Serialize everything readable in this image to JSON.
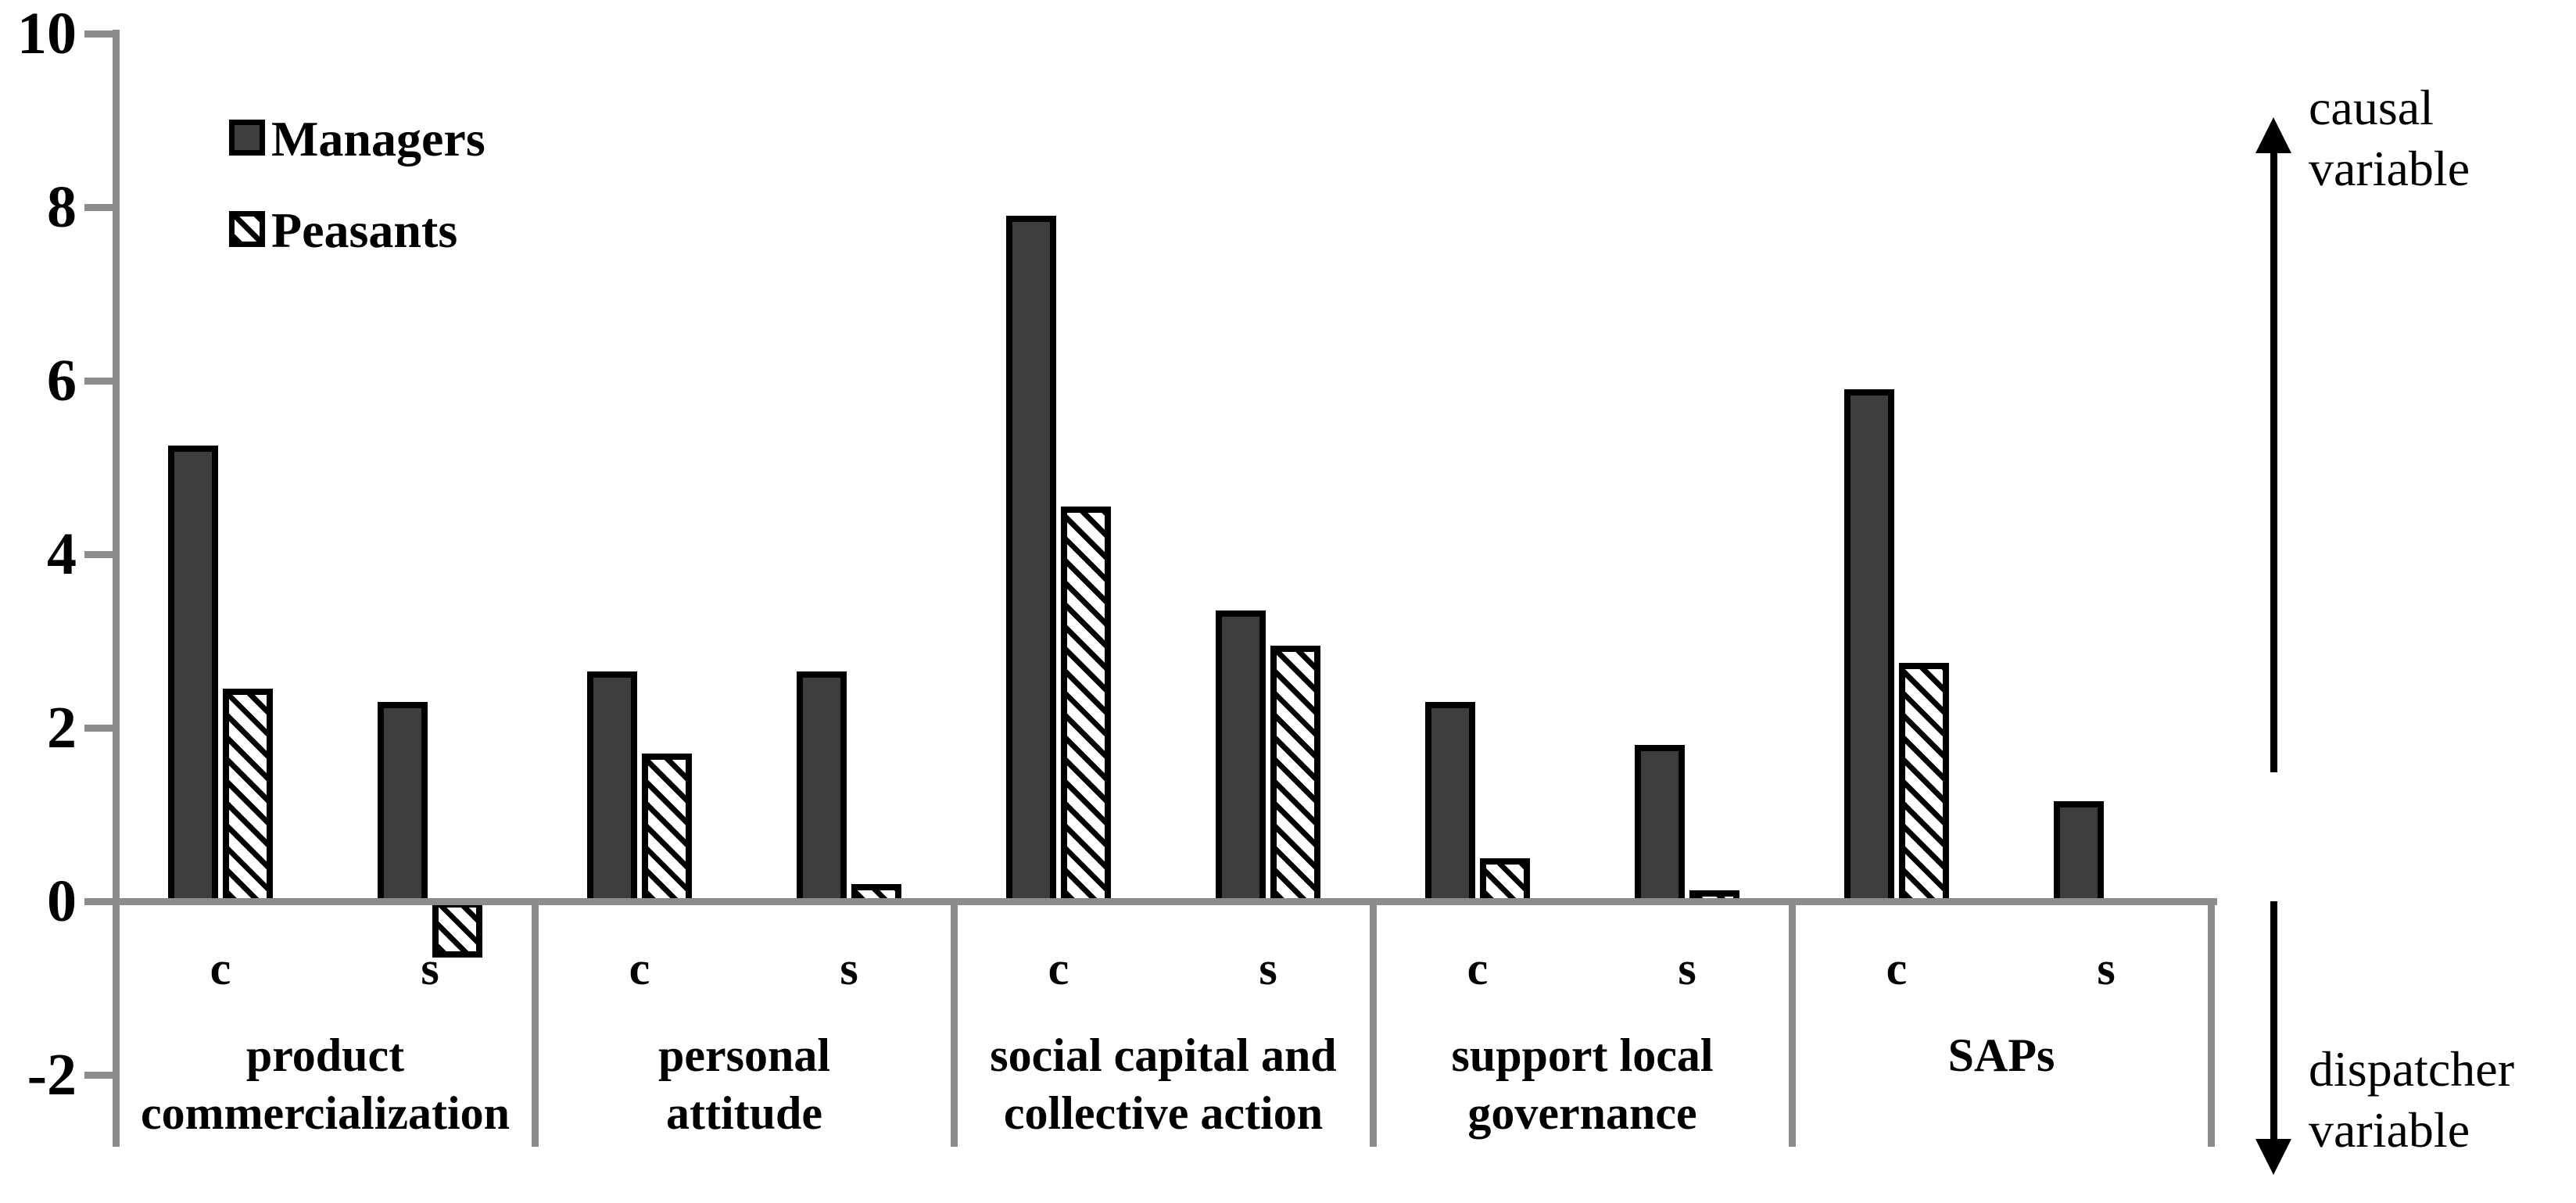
{
  "chart_data": {
    "type": "bar",
    "title": "",
    "xlabel": "",
    "ylabel": "",
    "ylim": [
      -2.8,
      10
    ],
    "yticks": [
      10,
      8,
      6,
      4,
      2,
      0,
      -2
    ],
    "grid": false,
    "legend_position": "top-left-inside",
    "categories": [
      "product\ncommercialization",
      "personal\nattitude",
      "social capital and\ncollective action",
      "support local\ngovernance",
      "SAPs"
    ],
    "sub_categories": [
      "c",
      "s"
    ],
    "series": [
      {
        "name": "Managers",
        "pattern": "solid",
        "fill_color": "#3e3e3e",
        "values_c": [
          5.25,
          2.65,
          7.9,
          2.3,
          5.9
        ],
        "values_s": [
          2.3,
          2.65,
          3.35,
          1.8,
          1.15
        ]
      },
      {
        "name": "Peasants",
        "pattern": "hatch",
        "fill_color": "#ffffff",
        "values_c": [
          2.45,
          1.7,
          4.55,
          0.5,
          2.75
        ],
        "values_s": [
          -0.65,
          0.2,
          2.95,
          0.13,
          null
        ]
      }
    ],
    "annotations": {
      "top_right": "causal\nvariable",
      "bottom_right": "dispatcher\nvariable"
    },
    "colors": {
      "axis": "#8c8c8c",
      "bar_dark": "#3e3e3e",
      "bar_border": "#000000",
      "text": "#000000",
      "background": "#ffffff"
    }
  }
}
